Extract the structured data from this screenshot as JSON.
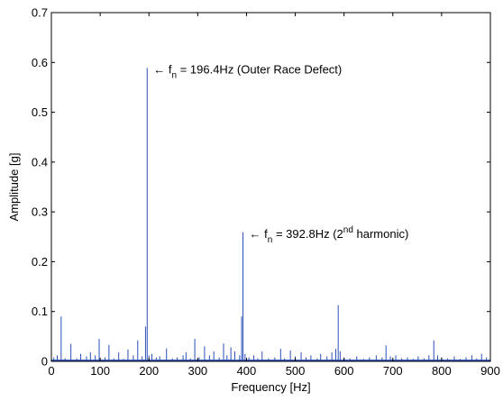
{
  "chart_data": {
    "type": "line",
    "xlabel": "Frequency [Hz]",
    "ylabel": "Amplitude [g]",
    "xlim": [
      0,
      900
    ],
    "ylim": [
      0,
      0.7
    ],
    "xticks": [
      0,
      100,
      200,
      300,
      400,
      500,
      600,
      700,
      800,
      900
    ],
    "yticks": [
      0,
      0.1,
      0.2,
      0.3,
      0.4,
      0.5,
      0.6,
      0.7
    ],
    "xtick_labels": [
      "0",
      "100",
      "200",
      "300",
      "400",
      "500",
      "600",
      "700",
      "800",
      "900"
    ],
    "ytick_labels": [
      "0",
      "0.1",
      "0.2",
      "0.3",
      "0.4",
      "0.5",
      "0.6",
      "0.7"
    ],
    "grid": false,
    "line_color": "#2b4fb8",
    "peaks": [
      {
        "x": 5,
        "y": 0.008
      },
      {
        "x": 12,
        "y": 0.012
      },
      {
        "x": 20,
        "y": 0.09
      },
      {
        "x": 28,
        "y": 0.006
      },
      {
        "x": 40,
        "y": 0.035
      },
      {
        "x": 52,
        "y": 0.006
      },
      {
        "x": 60,
        "y": 0.015
      },
      {
        "x": 72,
        "y": 0.01
      },
      {
        "x": 80,
        "y": 0.018
      },
      {
        "x": 90,
        "y": 0.012
      },
      {
        "x": 98,
        "y": 0.045
      },
      {
        "x": 110,
        "y": 0.008
      },
      {
        "x": 118,
        "y": 0.033
      },
      {
        "x": 128,
        "y": 0.006
      },
      {
        "x": 138,
        "y": 0.018
      },
      {
        "x": 148,
        "y": 0.005
      },
      {
        "x": 157,
        "y": 0.024
      },
      {
        "x": 168,
        "y": 0.012
      },
      {
        "x": 177,
        "y": 0.042
      },
      {
        "x": 186,
        "y": 0.01
      },
      {
        "x": 193,
        "y": 0.07
      },
      {
        "x": 196.4,
        "y": 0.589
      },
      {
        "x": 200,
        "y": 0.012
      },
      {
        "x": 206,
        "y": 0.015
      },
      {
        "x": 215,
        "y": 0.008
      },
      {
        "x": 222,
        "y": 0.01
      },
      {
        "x": 236,
        "y": 0.026
      },
      {
        "x": 248,
        "y": 0.006
      },
      {
        "x": 258,
        "y": 0.008
      },
      {
        "x": 270,
        "y": 0.012
      },
      {
        "x": 276,
        "y": 0.018
      },
      {
        "x": 285,
        "y": 0.006
      },
      {
        "x": 294,
        "y": 0.045
      },
      {
        "x": 303,
        "y": 0.008
      },
      {
        "x": 314,
        "y": 0.03
      },
      {
        "x": 324,
        "y": 0.012
      },
      {
        "x": 333,
        "y": 0.02
      },
      {
        "x": 344,
        "y": 0.008
      },
      {
        "x": 353,
        "y": 0.036
      },
      {
        "x": 360,
        "y": 0.012
      },
      {
        "x": 368,
        "y": 0.028
      },
      {
        "x": 376,
        "y": 0.02
      },
      {
        "x": 386,
        "y": 0.012
      },
      {
        "x": 390,
        "y": 0.09
      },
      {
        "x": 392.8,
        "y": 0.259
      },
      {
        "x": 397,
        "y": 0.015
      },
      {
        "x": 405,
        "y": 0.008
      },
      {
        "x": 415,
        "y": 0.012
      },
      {
        "x": 423,
        "y": 0.006
      },
      {
        "x": 432,
        "y": 0.02
      },
      {
        "x": 445,
        "y": 0.006
      },
      {
        "x": 458,
        "y": 0.008
      },
      {
        "x": 470,
        "y": 0.025
      },
      {
        "x": 478,
        "y": 0.006
      },
      {
        "x": 490,
        "y": 0.022
      },
      {
        "x": 500,
        "y": 0.01
      },
      {
        "x": 512,
        "y": 0.018
      },
      {
        "x": 522,
        "y": 0.008
      },
      {
        "x": 532,
        "y": 0.012
      },
      {
        "x": 545,
        "y": 0.006
      },
      {
        "x": 552,
        "y": 0.015
      },
      {
        "x": 565,
        "y": 0.01
      },
      {
        "x": 575,
        "y": 0.018
      },
      {
        "x": 583,
        "y": 0.025
      },
      {
        "x": 588,
        "y": 0.113
      },
      {
        "x": 592,
        "y": 0.02
      },
      {
        "x": 600,
        "y": 0.008
      },
      {
        "x": 612,
        "y": 0.006
      },
      {
        "x": 626,
        "y": 0.01
      },
      {
        "x": 640,
        "y": 0.005
      },
      {
        "x": 652,
        "y": 0.008
      },
      {
        "x": 666,
        "y": 0.012
      },
      {
        "x": 678,
        "y": 0.008
      },
      {
        "x": 686,
        "y": 0.032
      },
      {
        "x": 695,
        "y": 0.01
      },
      {
        "x": 706,
        "y": 0.012
      },
      {
        "x": 718,
        "y": 0.006
      },
      {
        "x": 730,
        "y": 0.008
      },
      {
        "x": 742,
        "y": 0.005
      },
      {
        "x": 752,
        "y": 0.01
      },
      {
        "x": 764,
        "y": 0.006
      },
      {
        "x": 774,
        "y": 0.012
      },
      {
        "x": 784,
        "y": 0.042
      },
      {
        "x": 792,
        "y": 0.012
      },
      {
        "x": 800,
        "y": 0.008
      },
      {
        "x": 812,
        "y": 0.006
      },
      {
        "x": 826,
        "y": 0.01
      },
      {
        "x": 838,
        "y": 0.005
      },
      {
        "x": 850,
        "y": 0.008
      },
      {
        "x": 862,
        "y": 0.012
      },
      {
        "x": 872,
        "y": 0.006
      },
      {
        "x": 882,
        "y": 0.015
      },
      {
        "x": 892,
        "y": 0.008
      }
    ],
    "annotations": [
      {
        "arrow": "←",
        "f_symbol": "f",
        "f_subscript": "n",
        "text": "= 196.4Hz (Outer Race Defect)",
        "x": 196.4,
        "y": 0.589
      },
      {
        "arrow": "←",
        "f_symbol": "f",
        "f_subscript": "n",
        "text": "= 392.8Hz (2",
        "superscript": "nd",
        "text_after": " harmonic)",
        "x": 392.8,
        "y": 0.259
      }
    ]
  }
}
